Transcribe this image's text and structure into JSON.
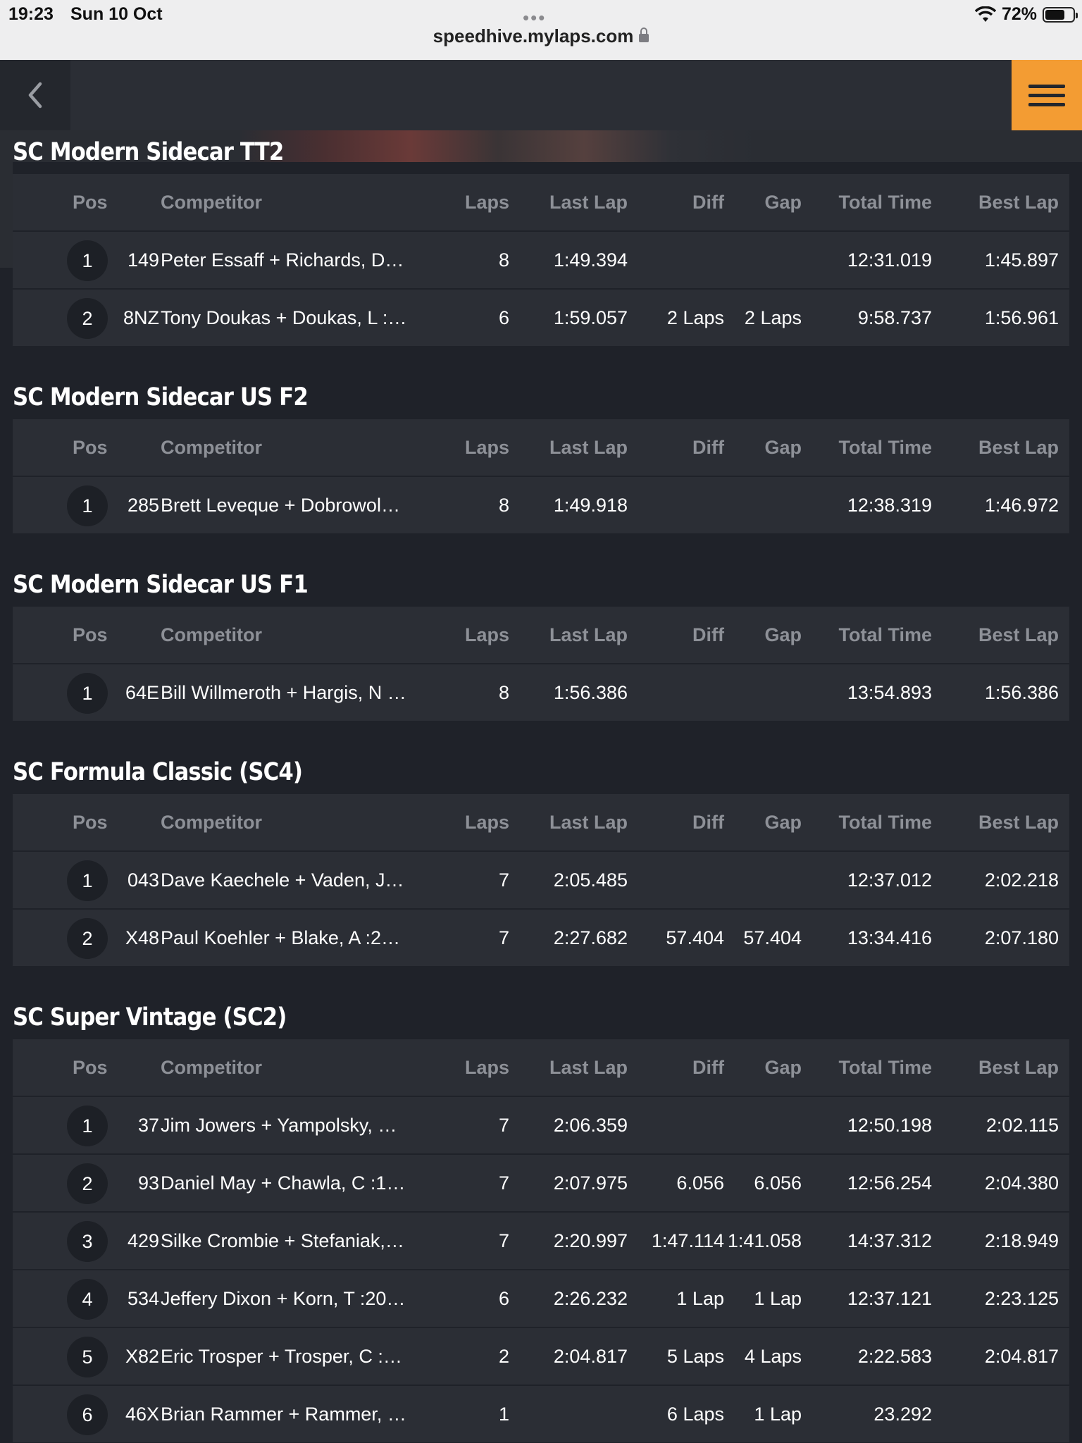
{
  "status_bar": {
    "time": "19:23",
    "date": "Sun 10 Oct",
    "url": "speedhive.mylaps.com",
    "battery": "72%"
  },
  "columns": {
    "pos": "Pos",
    "competitor": "Competitor",
    "laps": "Laps",
    "last_lap": "Last Lap",
    "diff": "Diff",
    "gap": "Gap",
    "total_time": "Total Time",
    "best_lap": "Best Lap"
  },
  "sections": [
    {
      "title": "SC Modern Sidecar TT2",
      "rows": [
        {
          "pos": "1",
          "num": "149",
          "competitor": "Peter Essaff + Richards, D…",
          "laps": "8",
          "last_lap": "1:49.394",
          "diff": "",
          "gap": "",
          "total_time": "12:31.019",
          "best_lap": "1:45.897"
        },
        {
          "pos": "2",
          "num": "8NZ",
          "competitor": "Tony Doukas + Doukas, L :…",
          "laps": "6",
          "last_lap": "1:59.057",
          "diff": "2 Laps",
          "gap": "2 Laps",
          "total_time": "9:58.737",
          "best_lap": "1:56.961"
        }
      ]
    },
    {
      "title": "SC Modern Sidecar US F2",
      "rows": [
        {
          "pos": "1",
          "num": "285",
          "competitor": "Brett Leveque + Dobrowol…",
          "laps": "8",
          "last_lap": "1:49.918",
          "diff": "",
          "gap": "",
          "total_time": "12:38.319",
          "best_lap": "1:46.972"
        }
      ]
    },
    {
      "title": "SC Modern Sidecar US F1",
      "rows": [
        {
          "pos": "1",
          "num": "64E",
          "competitor": "Bill Willmeroth + Hargis, N …",
          "laps": "8",
          "last_lap": "1:56.386",
          "diff": "",
          "gap": "",
          "total_time": "13:54.893",
          "best_lap": "1:56.386"
        }
      ]
    },
    {
      "title": "SC Formula Classic (SC4)",
      "rows": [
        {
          "pos": "1",
          "num": "043",
          "competitor": "Dave Kaechele + Vaden, J…",
          "laps": "7",
          "last_lap": "2:05.485",
          "diff": "",
          "gap": "",
          "total_time": "12:37.012",
          "best_lap": "2:02.218"
        },
        {
          "pos": "2",
          "num": "X48",
          "competitor": "Paul Koehler + Blake, A :2…",
          "laps": "7",
          "last_lap": "2:27.682",
          "diff": "57.404",
          "gap": "57.404",
          "total_time": "13:34.416",
          "best_lap": "2:07.180"
        }
      ]
    },
    {
      "title": "SC Super Vintage (SC2)",
      "rows": [
        {
          "pos": "1",
          "num": "37",
          "competitor": "Jim Jowers + Yampolsky, …",
          "laps": "7",
          "last_lap": "2:06.359",
          "diff": "",
          "gap": "",
          "total_time": "12:50.198",
          "best_lap": "2:02.115"
        },
        {
          "pos": "2",
          "num": "93",
          "competitor": "Daniel May + Chawla, C :1…",
          "laps": "7",
          "last_lap": "2:07.975",
          "diff": "6.056",
          "gap": "6.056",
          "total_time": "12:56.254",
          "best_lap": "2:04.380"
        },
        {
          "pos": "3",
          "num": "429",
          "competitor": "Silke Crombie + Stefaniak,…",
          "laps": "7",
          "last_lap": "2:20.997",
          "diff": "1:47.114",
          "gap": "1:41.058",
          "total_time": "14:37.312",
          "best_lap": "2:18.949"
        },
        {
          "pos": "4",
          "num": "534",
          "competitor": "Jeffery Dixon + Korn, T :20…",
          "laps": "6",
          "last_lap": "2:26.232",
          "diff": "1 Lap",
          "gap": "1 Lap",
          "total_time": "12:37.121",
          "best_lap": "2:23.125"
        },
        {
          "pos": "5",
          "num": "X82",
          "competitor": "Eric Trosper + Trosper, C :…",
          "laps": "2",
          "last_lap": "2:04.817",
          "diff": "5 Laps",
          "gap": "4 Laps",
          "total_time": "2:22.583",
          "best_lap": "2:04.817"
        },
        {
          "pos": "6",
          "num": "46X",
          "competitor": "Brian Rammer + Rammer, …",
          "laps": "1",
          "last_lap": "",
          "diff": "6 Laps",
          "gap": "1 Lap",
          "total_time": "23.292",
          "best_lap": ""
        }
      ]
    }
  ]
}
